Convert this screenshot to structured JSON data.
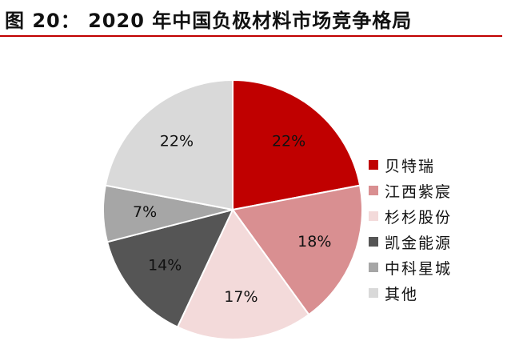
{
  "header": {
    "title": "图 20： 2020 年中国负极材料市场竞争格局"
  },
  "colors": {
    "title_rule": "#c00000"
  },
  "chart_data": {
    "type": "pie",
    "title": "",
    "start_angle_deg": 0,
    "direction": "clockwise",
    "legend_position": "right",
    "slices": [
      {
        "name": "贝特瑞",
        "value": 22,
        "label": "22%",
        "color": "#c00000"
      },
      {
        "name": "江西紫宸",
        "value": 18,
        "label": "18%",
        "color": "#d98f91"
      },
      {
        "name": "杉杉股份",
        "value": 17,
        "label": "17%",
        "color": "#f3dada"
      },
      {
        "name": "凯金能源",
        "value": 14,
        "label": "14%",
        "color": "#555555"
      },
      {
        "name": "中科星城",
        "value": 7,
        "label": "7%",
        "color": "#a6a6a6"
      },
      {
        "name": "其他",
        "value": 22,
        "label": "22%",
        "color": "#d9d9d9"
      }
    ]
  }
}
